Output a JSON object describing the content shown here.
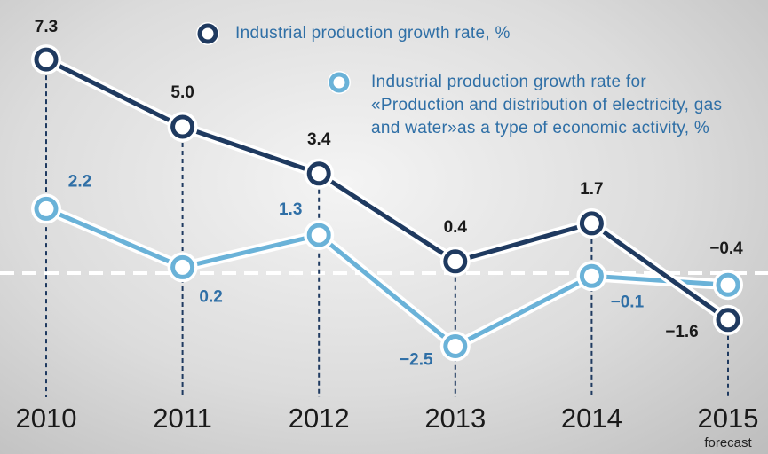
{
  "chart_data": {
    "type": "line",
    "categories": [
      "2010",
      "2011",
      "2012",
      "2013",
      "2014",
      "2015"
    ],
    "annotations": [
      "forecast"
    ],
    "series": [
      {
        "name": "Industrial production growth rate, %",
        "color": "#1f3a60",
        "values": [
          7.3,
          5.0,
          3.4,
          0.4,
          1.7,
          -1.6
        ],
        "value_labels": [
          "7.3",
          "5.0",
          "3.4",
          "0.4",
          "1.7",
          "−1.6"
        ]
      },
      {
        "name": "Industrial production growth rate for «Production and distribution of electricity, gas and water»as a type of economic activity, %",
        "color": "#6ab2d8",
        "values": [
          2.2,
          0.2,
          1.3,
          -2.5,
          -0.1,
          -0.4
        ],
        "value_labels": [
          "2.2",
          "0.2",
          "1.3",
          "−2.5",
          "−0.1",
          "−0.4"
        ]
      }
    ],
    "ylim": [
      -4,
      9
    ]
  }
}
